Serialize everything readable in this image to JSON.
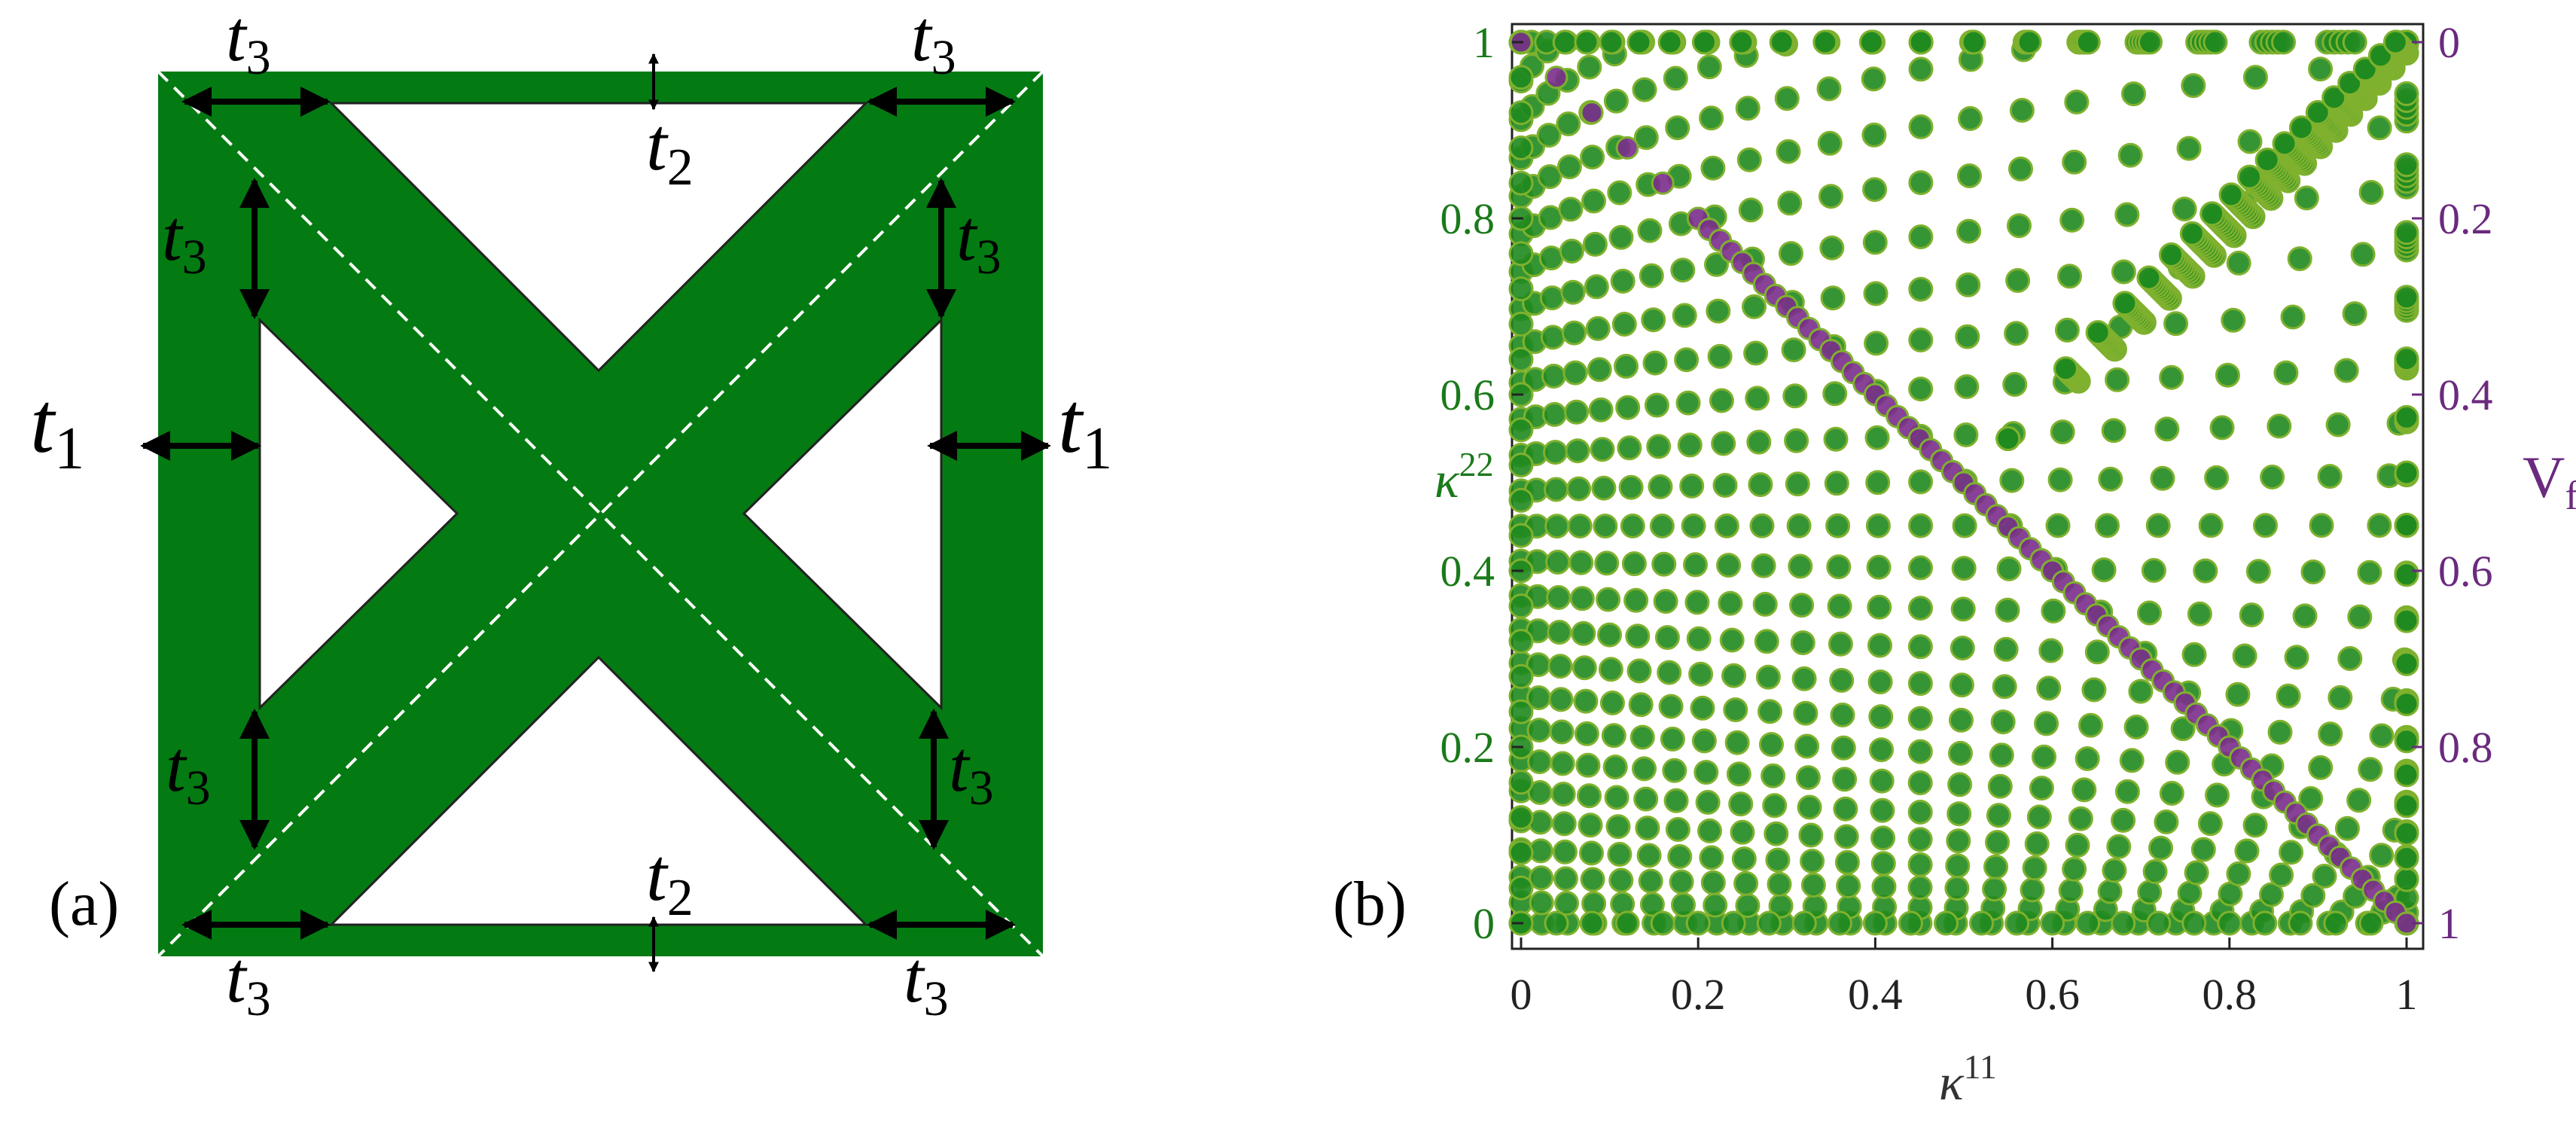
{
  "panel_a": {
    "label": "(a)",
    "colors": {
      "fill": "#047a12",
      "hole": "#ffffff",
      "diagonal": "#ffffff",
      "arrow": "#000000"
    },
    "dimension_labels": {
      "t1": {
        "base": "t",
        "sub": "1"
      },
      "t2": {
        "base": "t",
        "sub": "2"
      },
      "t3": {
        "base": "t",
        "sub": "3"
      }
    }
  },
  "panel_b": {
    "label": "(b)",
    "colors": {
      "green": "#1f8a1f",
      "green_edge": "#7fb12e",
      "purple": "#7a2e8c",
      "left_axis": "#1a7a1a",
      "right_axis": "#6a2a7e"
    },
    "chart_data": {
      "type": "scatter",
      "xlabel": {
        "base": "κ",
        "sup": "11"
      },
      "ylabel": {
        "base": "κ",
        "sup": "22"
      },
      "y2label": {
        "base": "V",
        "sub": "f"
      },
      "xlim": [
        0,
        1
      ],
      "ylim": [
        0,
        1
      ],
      "y2lim": [
        1,
        0
      ],
      "xticks": [
        "0",
        "0.2",
        "0.4",
        "0.6",
        "0.8",
        "1"
      ],
      "yticks": [
        "0",
        "0.2",
        "0.4",
        "0.6",
        "0.8",
        "1"
      ],
      "y2ticks": [
        "1",
        "0.8",
        "0.6",
        "0.4",
        "0.2",
        "0"
      ],
      "series": [
        {
          "marker": "green-circle",
          "description": "κ22 vs κ11 dense cloud of design samples",
          "families": [
            {
              "offset": 0.0,
              "curvature": 0.0
            },
            {
              "offset": 0.04,
              "curvature": 0.15
            },
            {
              "offset": 0.08,
              "curvature": 0.3
            },
            {
              "offset": 0.12,
              "curvature": 0.45
            },
            {
              "offset": 0.16,
              "curvature": 0.6
            },
            {
              "offset": 0.2,
              "curvature": 0.75
            },
            {
              "offset": 0.24,
              "curvature": 0.9
            },
            {
              "offset": 0.28,
              "curvature": 1.05
            },
            {
              "offset": 0.32,
              "curvature": 1.2
            },
            {
              "offset": 0.36,
              "curvature": 1.35
            },
            {
              "offset": 0.4,
              "curvature": 1.5
            }
          ]
        },
        {
          "marker": "purple-circle",
          "description": "Vf vs κ11 (right axis)",
          "x": [
            0,
            0.04,
            0.08,
            0.12,
            0.16,
            0.2,
            0.3,
            0.4,
            0.5,
            0.6,
            0.7,
            0.8,
            0.9,
            1.0
          ],
          "y2": [
            0,
            0.04,
            0.08,
            0.12,
            0.16,
            0.2,
            0.3,
            0.4,
            0.5,
            0.6,
            0.7,
            0.8,
            0.9,
            1.0
          ]
        }
      ]
    }
  }
}
